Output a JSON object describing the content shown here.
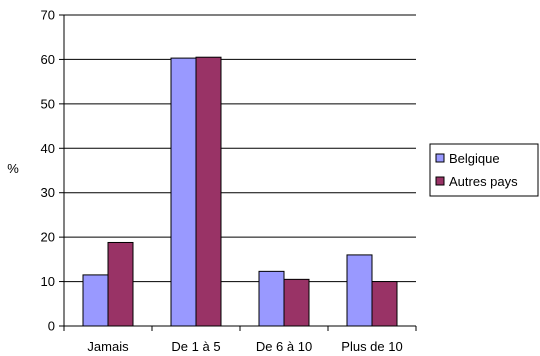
{
  "chart_data": {
    "type": "bar",
    "title": "",
    "xlabel": "",
    "ylabel": "%",
    "ylim": [
      0,
      70
    ],
    "ytick_step": 10,
    "grid": true,
    "legend_position": "right",
    "categories": [
      "Jamais",
      "De 1 à 5",
      "De 6 à 10",
      "Plus de 10"
    ],
    "series": [
      {
        "name": "Belgique",
        "color": "#9999ff",
        "values": [
          11.5,
          60.3,
          12.3,
          16.0
        ]
      },
      {
        "name": "Autres pays",
        "color": "#993366",
        "values": [
          18.8,
          60.5,
          10.5,
          10.0
        ]
      }
    ]
  }
}
